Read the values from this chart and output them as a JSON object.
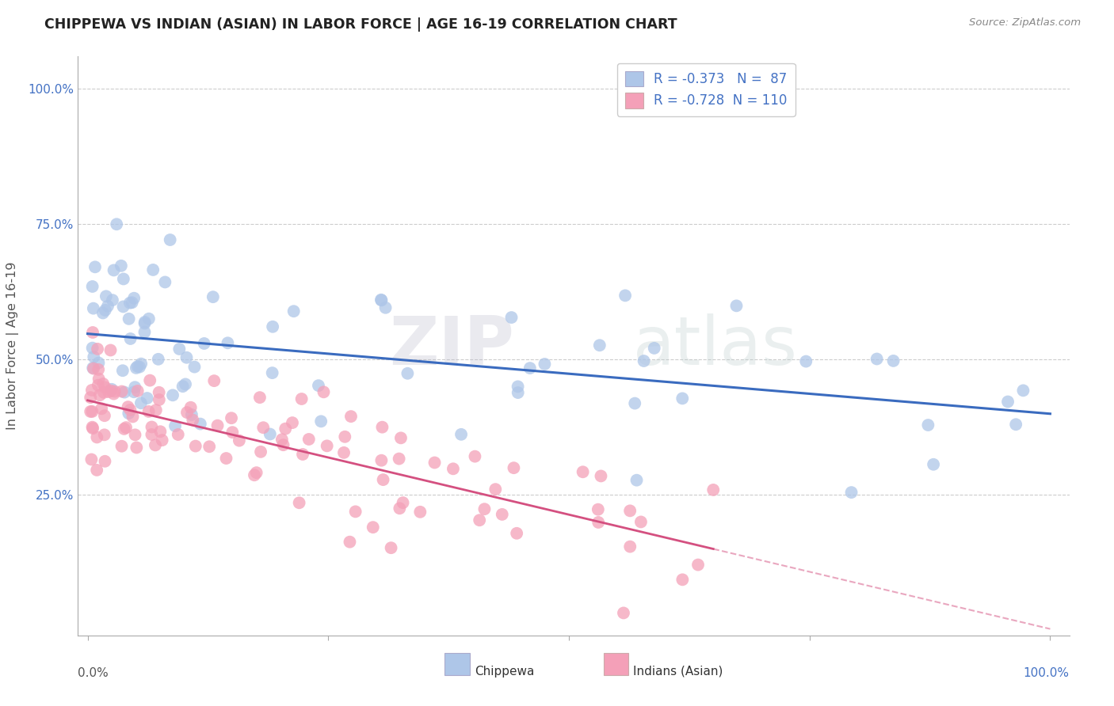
{
  "title": "CHIPPEWA VS INDIAN (ASIAN) IN LABOR FORCE | AGE 16-19 CORRELATION CHART",
  "source": "Source: ZipAtlas.com",
  "ylabel": "In Labor Force | Age 16-19",
  "chippewa_R": -0.373,
  "chippewa_N": 87,
  "indian_R": -0.728,
  "indian_N": 110,
  "chippewa_color": "#aec6e8",
  "chippewa_line_color": "#3a6bbf",
  "indian_color": "#f4a0b8",
  "indian_line_color": "#d45080",
  "legend_text_color": "#4472c4",
  "background_color": "#ffffff",
  "watermark_zip": "ZIP",
  "watermark_atlas": "atlas",
  "xlim": [
    0.0,
    1.0
  ],
  "ylim": [
    0.0,
    1.0
  ],
  "ytick_positions": [
    0.25,
    0.5,
    0.75,
    1.0
  ],
  "ytick_labels": [
    "25.0%",
    "50.0%",
    "75.0%",
    "100.0%"
  ],
  "xtick_left_label": "0.0%",
  "xtick_right_label": "100.0%",
  "bottom_legend_chippewa": "Chippewa",
  "bottom_legend_indian": "Indians (Asian)"
}
